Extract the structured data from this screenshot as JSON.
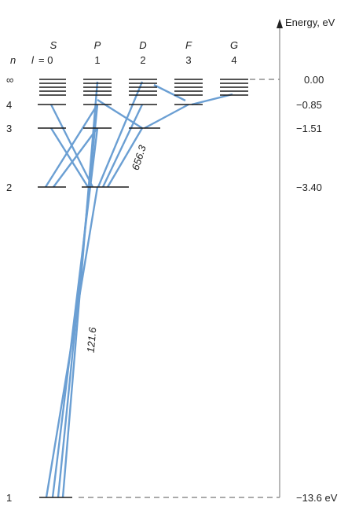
{
  "axis": {
    "label": "Energy, eV"
  },
  "n_header": "n",
  "l_prefix": "l",
  "subshells": [
    {
      "letter": "S",
      "l": "= 0"
    },
    {
      "letter": "P",
      "l": "1"
    },
    {
      "letter": "D",
      "l": "2"
    },
    {
      "letter": "F",
      "l": "3"
    },
    {
      "letter": "G",
      "l": "4"
    }
  ],
  "levels": [
    {
      "n": "∞",
      "energy": "0.00"
    },
    {
      "n": "4",
      "energy": "−0.85"
    },
    {
      "n": "3",
      "energy": "−1.51"
    },
    {
      "n": "2",
      "energy": "−3.40"
    },
    {
      "n": "1",
      "energy": "−13.6 eV"
    }
  ],
  "wavelengths": {
    "lyman_alpha": "121.6",
    "balmer_alpha": "656.3"
  }
}
